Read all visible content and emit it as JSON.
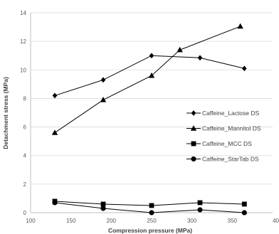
{
  "chart_data": {
    "type": "line",
    "title": "",
    "xlabel": "Compression pressure (MPa)",
    "ylabel": "Detachment stress (MPa)",
    "xlim": [
      100,
      400
    ],
    "ylim": [
      0,
      14
    ],
    "xticks": [
      "100",
      "150",
      "200",
      "250",
      "300",
      "350",
      "40"
    ],
    "yticks": [
      "0",
      "2",
      "4",
      "6",
      "8",
      "10",
      "12",
      "14"
    ],
    "grid": "horizontal",
    "legend_position": "right",
    "series": [
      {
        "name": "Caffeine_Lactose DS",
        "marker": "diamond",
        "x": [
          130,
          190,
          250,
          310,
          365
        ],
        "y": [
          8.2,
          9.3,
          11.0,
          10.85,
          10.1
        ]
      },
      {
        "name": "Caffeine_Mannitol DS",
        "marker": "triangle",
        "x": [
          130,
          190,
          250,
          285,
          360
        ],
        "y": [
          5.6,
          7.9,
          9.6,
          11.4,
          13.05
        ]
      },
      {
        "name": "Caffeine_MCC DS",
        "marker": "square",
        "x": [
          130,
          190,
          250,
          310,
          365
        ],
        "y": [
          0.8,
          0.6,
          0.5,
          0.7,
          0.6
        ]
      },
      {
        "name": "Caffeine_StarTab DS",
        "marker": "circle",
        "x": [
          130,
          190,
          250,
          310,
          365
        ],
        "y": [
          0.7,
          0.3,
          0.0,
          0.2,
          0.0
        ]
      }
    ]
  }
}
